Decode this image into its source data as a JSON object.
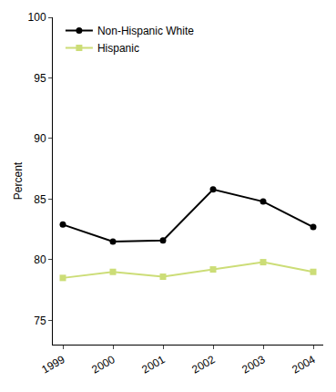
{
  "chart_data": {
    "type": "line",
    "categories": [
      "1999",
      "2000",
      "2001",
      "2002",
      "2003",
      "2004"
    ],
    "series": [
      {
        "name": "Non-Hispanic White",
        "color": "#000000",
        "marker": "circle",
        "values": [
          82.9,
          81.5,
          81.6,
          85.8,
          84.8,
          82.7
        ]
      },
      {
        "name": "Hispanic",
        "color": "#ccdd77",
        "marker": "square",
        "values": [
          78.5,
          79.0,
          78.6,
          79.2,
          79.8,
          79.0
        ]
      }
    ],
    "y_label": "Percent",
    "ylim": [
      73,
      100
    ],
    "yticks": [
      75,
      80,
      85,
      90,
      95,
      100
    ],
    "grid": false,
    "legend": "top left"
  }
}
